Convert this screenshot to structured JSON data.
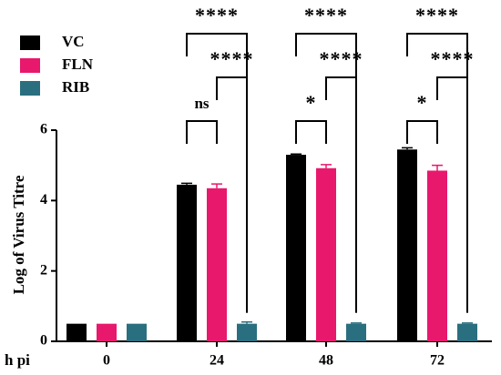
{
  "chart_data": {
    "type": "bar",
    "categories": [
      "0",
      "24",
      "48",
      "72"
    ],
    "x_label": "h pi",
    "y_label": "Log of Virus Titre",
    "ylim": [
      0,
      6
    ],
    "yticks": [
      0,
      2,
      4,
      6
    ],
    "series": [
      {
        "name": "VC",
        "color": "#000000",
        "values": [
          0.5,
          4.45,
          5.3,
          5.45
        ],
        "errors": [
          null,
          0.04,
          0.02,
          0.05
        ]
      },
      {
        "name": "FLN",
        "color": "#e8186d",
        "values": [
          0.5,
          4.35,
          4.92,
          4.85
        ],
        "errors": [
          null,
          0.12,
          0.1,
          0.15
        ]
      },
      {
        "name": "RIB",
        "color": "#2a6f7f",
        "values": [
          0.5,
          0.5,
          0.5,
          0.5
        ],
        "errors": [
          null,
          0.05,
          0.02,
          0.02
        ]
      }
    ],
    "annotations": [
      {
        "category": 1,
        "from": 0,
        "to": 1,
        "label": "ns"
      },
      {
        "category": 1,
        "from": 1,
        "to": 2,
        "label": "****"
      },
      {
        "category": 1,
        "from": 0,
        "to": 2,
        "label": "****"
      },
      {
        "category": 2,
        "from": 0,
        "to": 1,
        "label": "*"
      },
      {
        "category": 2,
        "from": 1,
        "to": 2,
        "label": "****"
      },
      {
        "category": 2,
        "from": 0,
        "to": 2,
        "label": "****"
      },
      {
        "category": 3,
        "from": 0,
        "to": 1,
        "label": "*"
      },
      {
        "category": 3,
        "from": 1,
        "to": 2,
        "label": "****"
      },
      {
        "category": 3,
        "from": 0,
        "to": 2,
        "label": "****"
      }
    ]
  }
}
